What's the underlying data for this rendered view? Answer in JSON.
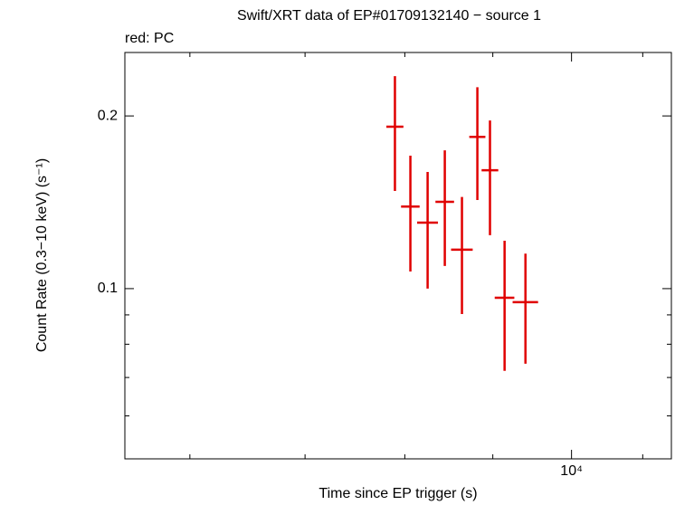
{
  "chart_data": {
    "type": "errorbar",
    "title": "Swift/XRT data of EP#01709132140 − source 1",
    "subtitle": "red: PC",
    "x_label": "Time since EP trigger (s)",
    "y_label": "Count Rate (0.3−10 keV) (s⁻¹)",
    "x_log": true,
    "y_log": true,
    "xlim": [
      5500,
      11430
    ],
    "ylim": [
      0.0505,
      0.258
    ],
    "xticks": [
      {
        "value": 10000,
        "label": "10⁴"
      }
    ],
    "xminor": [
      6000,
      7000,
      8000,
      9000,
      11000
    ],
    "yticks": [
      0.1,
      0.2
    ],
    "yminor": [
      0.06,
      0.07,
      0.08,
      0.09
    ],
    "series": [
      {
        "name": "PC",
        "color": "#e00000",
        "x": [
          7895,
          8060,
          8248,
          8440,
          8636,
          8816,
          8966,
          9143,
          9402
        ],
        "xerr": [
          90,
          100,
          115,
          105,
          125,
          95,
          100,
          120,
          160
        ],
        "values": [
          0.1915,
          0.139,
          0.1303,
          0.1417,
          0.1169,
          0.1839,
          0.1608,
          0.0964,
          0.0947
        ],
        "yerr_minus": [
          0.0435,
          0.0319,
          0.0303,
          0.0322,
          0.0266,
          0.0412,
          0.0369,
          0.0245,
          0.0207
        ],
        "yerr_plus": [
          0.0431,
          0.0315,
          0.0294,
          0.0325,
          0.0276,
          0.0405,
          0.0356,
          0.0248,
          0.0204
        ]
      }
    ]
  }
}
